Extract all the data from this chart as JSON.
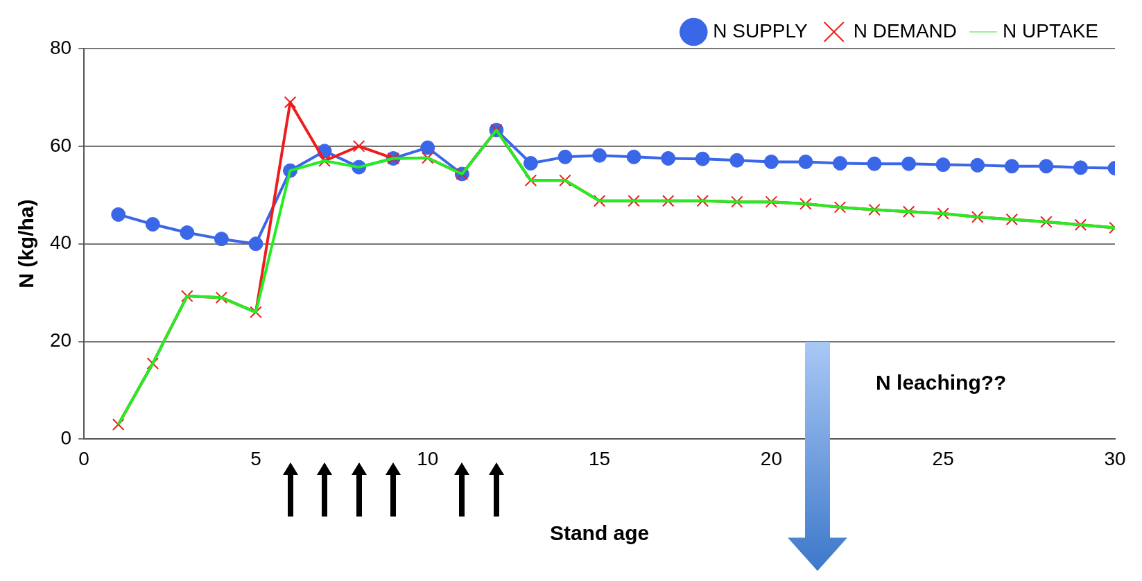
{
  "chart_data": {
    "type": "line",
    "xlabel": "Stand age",
    "ylabel": "N (kg/ha)",
    "xlim": [
      0,
      30
    ],
    "xticks": [
      0,
      5,
      10,
      15,
      20,
      25,
      30
    ],
    "ylim": [
      0,
      80
    ],
    "yticks": [
      0,
      20,
      40,
      60,
      80
    ],
    "grid": "y",
    "legend": "top right",
    "x": [
      1,
      2,
      3,
      4,
      5,
      6,
      7,
      8,
      9,
      10,
      11,
      12,
      13,
      14,
      15,
      16,
      17,
      18,
      19,
      20,
      21,
      22,
      23,
      24,
      25,
      26,
      27,
      28,
      29,
      30
    ],
    "series": [
      {
        "name": "N SUPPLY",
        "color": "#3a66e8",
        "marker": "circle",
        "values": [
          46,
          44,
          42.3,
          41,
          40,
          55,
          59,
          55.7,
          57.5,
          59.7,
          54.3,
          63.3,
          56.5,
          57.8,
          58.1,
          57.8,
          57.5,
          57.4,
          57.1,
          56.8,
          56.8,
          56.5,
          56.4,
          56.4,
          56.2,
          56.1,
          55.9,
          55.9,
          55.6,
          55.5
        ]
      },
      {
        "name": "N DEMAND",
        "color": "#ee1c1c",
        "marker": "cross",
        "values": [
          3,
          15.5,
          29.3,
          29,
          26,
          69,
          57,
          60,
          57.5,
          57.6,
          54.3,
          63.3,
          53,
          53,
          48.8,
          48.8,
          48.8,
          48.8,
          48.6,
          48.6,
          48.2,
          47.5,
          47,
          46.6,
          46.2,
          45.5,
          45,
          44.5,
          43.9,
          43.3
        ]
      },
      {
        "name": "N UPTAKE",
        "color": "#22ee22",
        "marker": "none",
        "values": [
          3,
          15.5,
          29.3,
          29,
          26,
          55,
          57,
          55.7,
          57.5,
          57.6,
          54.3,
          63.3,
          53,
          53,
          48.8,
          48.8,
          48.8,
          48.8,
          48.6,
          48.6,
          48.2,
          47.5,
          47,
          46.6,
          46.2,
          45.5,
          45,
          44.5,
          43.9,
          43.3
        ]
      }
    ],
    "annotations": [
      "N leaching??"
    ]
  }
}
